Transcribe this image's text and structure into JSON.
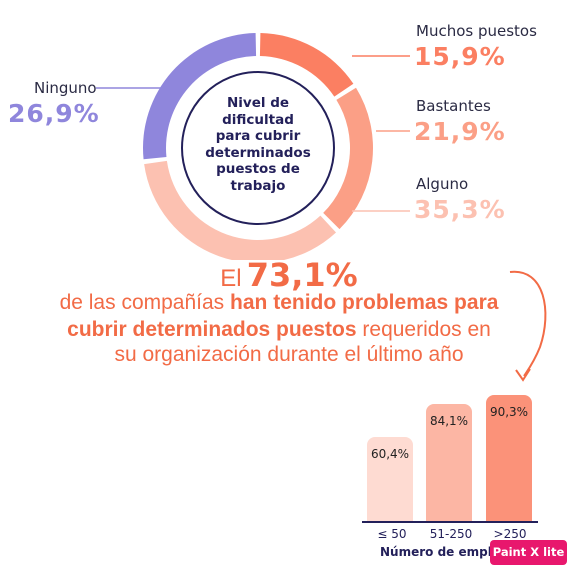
{
  "chart_data": [
    {
      "type": "pie",
      "style": "donut",
      "center_label": "Nivel de dificultad para cubrir determinados puestos de trabajo",
      "center_lines": [
        "Nivel de",
        "dificultad",
        "para cubrir",
        "determinados",
        "puestos de",
        "trabajo"
      ],
      "slices": [
        {
          "name": "Muchos puestos",
          "value": 15.9,
          "display": "15,9%",
          "color": "#fb7f62"
        },
        {
          "name": "Bastantes",
          "value": 21.9,
          "display": "21,9%",
          "color": "#fb9f86"
        },
        {
          "name": "Alguno",
          "value": 35.3,
          "display": "35,3%",
          "color": "#fcc1b1"
        },
        {
          "name": "Ninguno",
          "value": 26.9,
          "display": "26,9%",
          "color": "#8f86dc"
        }
      ]
    },
    {
      "type": "bar",
      "xlabel": "Número de emple",
      "categories": [
        "≤ 50",
        "51-250",
        ">250"
      ],
      "values": [
        60.4,
        84.1,
        90.3
      ],
      "value_labels": [
        "60,4%",
        "84,1%",
        "90,3%"
      ],
      "colors": [
        "#fedbd2",
        "#fcb6a4",
        "#fb9279"
      ],
      "ylim": [
        0,
        100
      ]
    }
  ],
  "headline": {
    "prefix": "El",
    "value": "73,1%",
    "line1_normal": "de las compañías",
    "line1_bold": "han tenido problemas para",
    "line2_bold": "cubrir determinados puestos",
    "line2_normal": "requeridos en",
    "line3": "su organización durante el último año"
  },
  "badge": "Paint X lite",
  "colors": {
    "accent": "#f26b46",
    "navy": "#23205a",
    "purple": "#8f86dc",
    "center_ring": "#23205a"
  }
}
